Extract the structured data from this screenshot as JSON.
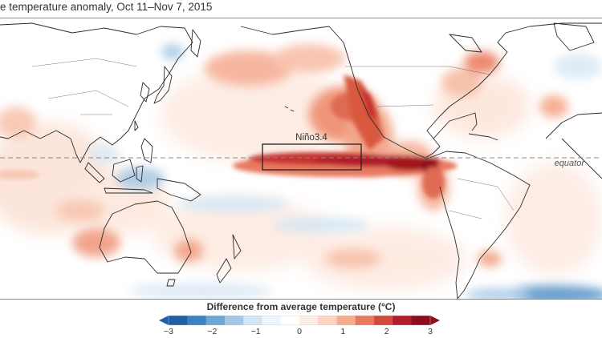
{
  "title": "e temperature anomaly, Oct 11–Nov 7, 2015",
  "map": {
    "region_label": "Niño3.4",
    "equator_label": "equator"
  },
  "legend": {
    "title": "Difference from average temperature (°C)",
    "ticks": [
      "−3",
      "−2",
      "−1",
      "0",
      "1",
      "2",
      "3"
    ],
    "colors": [
      "#1f5fa6",
      "#3d82c0",
      "#6ea6d3",
      "#a3c7e4",
      "#d3e5f2",
      "#eef5fb",
      "#ffffff",
      "#fdeee6",
      "#fbd4c2",
      "#f5ac8f",
      "#e7795f",
      "#d24a3d",
      "#b11c29",
      "#8c0d1d"
    ]
  }
}
